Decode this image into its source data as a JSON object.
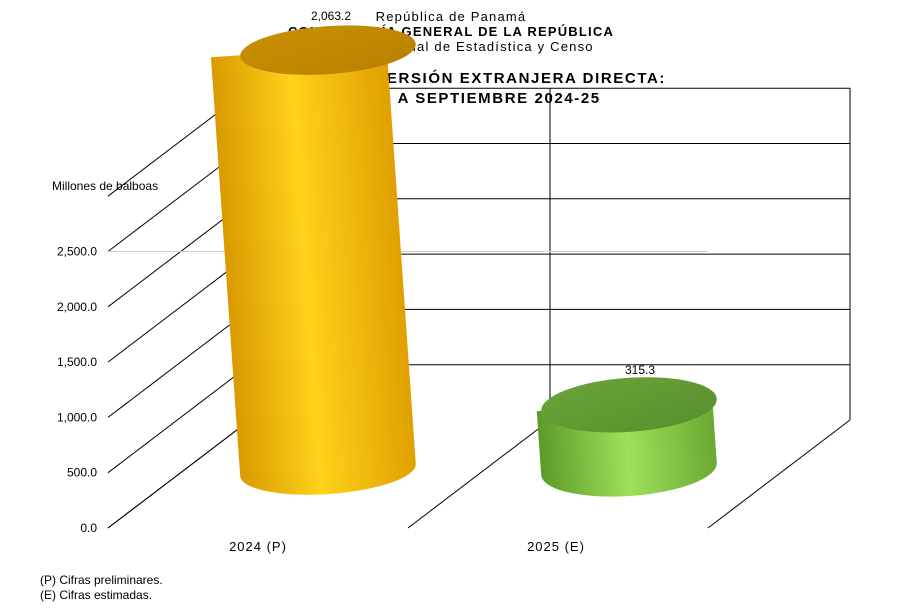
{
  "header": {
    "line1": "República de Panamá",
    "line2": "CONTRALORÍA GENERAL DE LA REPÚBLICA",
    "line3": "Instituto Nacional de Estadística y Censo"
  },
  "chart_data": {
    "type": "bar",
    "title": "FLUJO DE LA INVERSIÓN EXTRANJERA DIRECTA:",
    "subtitle": "DE ENERO A SEPTIEMBRE 2024-25",
    "ylabel": "Millones de balboas",
    "xlabel": "",
    "categories": [
      "2024 (P)",
      "2025 (E)"
    ],
    "values": [
      2063.2,
      315.3
    ],
    "value_labels": [
      "2,063.2",
      "315.3"
    ],
    "colors": [
      "#f5b800",
      "#8cc63f"
    ],
    "ylim": [
      0,
      3000
    ],
    "yticks": [
      0,
      500,
      1000,
      1500,
      2000,
      2500
    ],
    "ytick_labels": [
      "0.0",
      "500.0",
      "1,000.0",
      "1,500.0",
      "2,000.0",
      "2,500.0"
    ],
    "grid": true,
    "legend": "none",
    "style": "3d-cylinder"
  },
  "notes": {
    "n1": "(P) Cifras  preliminares.",
    "n2": "(E) Cifras  estimadas."
  }
}
